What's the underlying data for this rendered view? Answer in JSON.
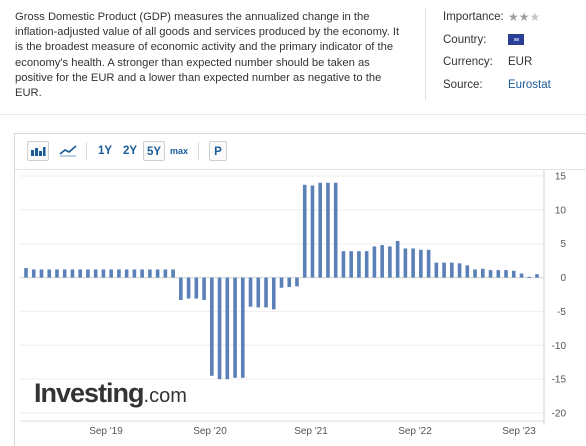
{
  "description": "Gross Domestic Product (GDP) measures the annualized change in the inflation-adjusted value of all goods and services produced by the economy. It is the broadest measure of economic activity and the primary indicator of the economy's health. A stronger than expected number should be taken as positive for the EUR and a lower than expected number as negative to the EUR.",
  "meta": {
    "importance_label": "Importance:",
    "importance_stars": 2,
    "importance_max": 3,
    "country_label": "Country:",
    "country_flag": "eu-flag-icon",
    "currency_label": "Currency:",
    "currency_value": "EUR",
    "source_label": "Source:",
    "source_value": "Eurostat"
  },
  "toolbar": {
    "bar_icon": "bar-chart-icon",
    "line_icon": "line-chart-icon",
    "range_1y": "1Y",
    "range_2y": "2Y",
    "range_5y": "5Y",
    "range_max": "max",
    "p_button": "P",
    "selected_range": "5Y"
  },
  "logo": {
    "text": "Investing",
    "domain": ".com"
  },
  "colors": {
    "bar": "#5b7fb7",
    "bar_forecast": "#a9b8cc",
    "link": "#1a5b99",
    "grid": "#eeeeee"
  },
  "chart_data": {
    "type": "bar",
    "x_ticks": [
      "Sep '19",
      "Sep '20",
      "Sep '21",
      "Sep '22",
      "Sep '23"
    ],
    "y_ticks": [
      15,
      10,
      5,
      0,
      -5,
      -10,
      -15,
      -20
    ],
    "ylim": [
      -20,
      15
    ],
    "grid": true,
    "axis_side": "right",
    "series": [
      {
        "values": [
          1.4,
          1.2,
          1.2,
          1.2,
          1.2,
          1.2,
          1.2,
          1.2,
          1.2,
          1.2,
          1.2,
          1.2,
          1.2,
          1.2,
          1.2,
          1.2,
          1.2,
          1.2,
          1.2,
          1.2,
          -3.3,
          -3.1,
          -3.1,
          -3.3,
          -14.5,
          -15.0,
          -15.0,
          -14.8,
          -14.8,
          -4.3,
          -4.4,
          -4.4,
          -4.7,
          -1.5,
          -1.4,
          -1.3,
          13.7,
          13.6,
          14.0,
          14.0,
          14.0,
          3.9,
          3.9,
          3.9,
          3.9,
          4.6,
          4.8,
          4.6,
          5.4,
          4.3,
          4.3,
          4.1,
          4.1,
          2.2,
          2.2,
          2.2,
          2.1,
          1.8,
          1.2,
          1.3,
          1.1,
          1.1,
          1.1,
          1.0,
          0.6,
          0.1,
          0.5
        ]
      }
    ]
  }
}
